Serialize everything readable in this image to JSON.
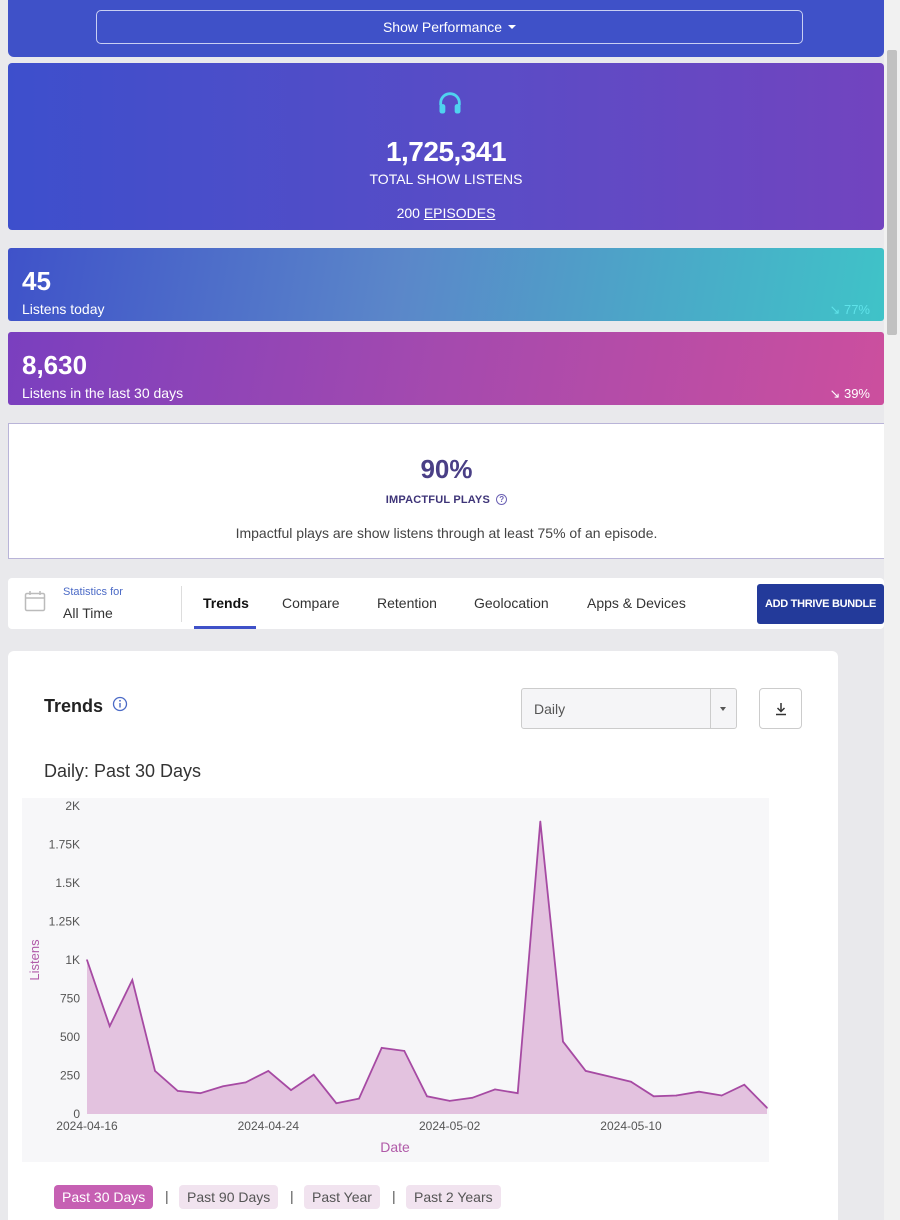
{
  "header": {
    "performance_button": "Show Performance"
  },
  "hero": {
    "icon": "headphones-icon",
    "total_listens": "1,725,341",
    "total_label": "TOTAL SHOW LISTENS",
    "episodes_count": "200",
    "episodes_link": "EPISODES"
  },
  "stats": {
    "today": {
      "value": "45",
      "label": "Listens today",
      "change": "↘ 77%"
    },
    "month": {
      "value": "8,630",
      "label": "Listens in the last 30 days",
      "change": "↘ 39%"
    }
  },
  "impact": {
    "percent": "90%",
    "label": "IMPACTFUL PLAYS",
    "help_icon": "?",
    "description": "Impactful plays are show listens through at least 75% of an episode."
  },
  "tabsbar": {
    "statistics_for_label": "Statistics for",
    "statistics_for_value": "All Time",
    "tabs": [
      "Trends",
      "Compare",
      "Retention",
      "Geolocation",
      "Apps & Devices"
    ],
    "active_tab": "Trends",
    "add_bundle_button": "ADD THRIVE BUNDLE"
  },
  "trends": {
    "title": "Trends",
    "granularity_select": "Daily",
    "download_icon": "download-icon",
    "chart_title": "Daily: Past 30 Days",
    "ranges": [
      "Past 30 Days",
      "Past 90 Days",
      "Past Year",
      "Past 2 Years"
    ],
    "active_range": "Past 30 Days"
  },
  "colors": {
    "accent": "#3f51c8",
    "chart_line": "#a64aa3",
    "chart_fill": "#e3c2df",
    "range_active": "#c660b3"
  },
  "chart_data": {
    "type": "area",
    "xlabel": "Date",
    "ylabel": "Listens",
    "ylim": [
      0,
      2000
    ],
    "yticks": [
      "0",
      "250",
      "500",
      "750",
      "1K",
      "1.25K",
      "1.5K",
      "1.75K",
      "2K"
    ],
    "xticks": [
      "2024-04-16",
      "2024-04-24",
      "2024-05-02",
      "2024-05-10"
    ],
    "x": [
      "2024-04-16",
      "2024-04-17",
      "2024-04-18",
      "2024-04-19",
      "2024-04-20",
      "2024-04-21",
      "2024-04-22",
      "2024-04-23",
      "2024-04-24",
      "2024-04-25",
      "2024-04-26",
      "2024-04-27",
      "2024-04-28",
      "2024-04-29",
      "2024-04-30",
      "2024-05-01",
      "2024-05-02",
      "2024-05-03",
      "2024-05-04",
      "2024-05-05",
      "2024-05-06",
      "2024-05-07",
      "2024-05-08",
      "2024-05-09",
      "2024-05-10",
      "2024-05-11",
      "2024-05-12",
      "2024-05-13",
      "2024-05-14",
      "2024-05-15",
      "2024-05-16"
    ],
    "series": [
      {
        "values": [
          1000,
          570,
          870,
          280,
          150,
          135,
          180,
          205,
          280,
          155,
          255,
          70,
          100,
          430,
          410,
          115,
          85,
          105,
          160,
          135,
          1900,
          470,
          280,
          245,
          210,
          115,
          120,
          145,
          120,
          190,
          40
        ]
      }
    ],
    "grid": false
  }
}
